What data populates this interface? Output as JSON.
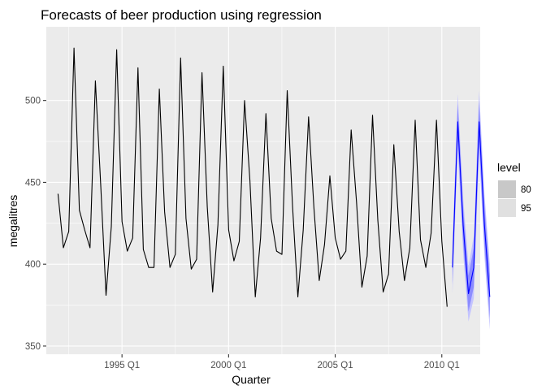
{
  "chart_data": {
    "type": "line",
    "title": "Forecasts of beer production using regression",
    "xlabel": "Quarter",
    "ylabel": "megalitres",
    "xlim": [
      1991.45,
      2011.8
    ],
    "ylim": [
      345,
      545
    ],
    "x_ticks": [
      {
        "value": 1995,
        "label": "1995 Q1"
      },
      {
        "value": 2000,
        "label": "2000 Q1"
      },
      {
        "value": 2005,
        "label": "2005 Q1"
      },
      {
        "value": 2010,
        "label": "2010 Q1"
      }
    ],
    "y_ticks": [
      {
        "value": 350,
        "label": "350"
      },
      {
        "value": 400,
        "label": "400"
      },
      {
        "value": 450,
        "label": "450"
      },
      {
        "value": 500,
        "label": "500"
      }
    ],
    "grid": true,
    "legend": {
      "title": "level",
      "position": "right",
      "entries": [
        {
          "label": "80",
          "color": "#c8c8c8"
        },
        {
          "label": "95",
          "color": "#e0e0e0"
        }
      ]
    },
    "colors": {
      "panel": "#ebebeb",
      "grid_major": "#ffffff",
      "history": "#000000",
      "forecast": "#0000ff",
      "interval_80": "#8c8cff",
      "interval_95": "#c4c4ff"
    },
    "series": [
      {
        "role": "history",
        "start": 1992.0,
        "step": 0.25,
        "values": [
          443,
          410,
          420,
          532,
          433,
          421,
          410,
          512,
          449,
          381,
          423,
          531,
          426,
          408,
          416,
          520,
          409,
          398,
          398,
          507,
          432,
          398,
          406,
          526,
          428,
          397,
          403,
          517,
          435,
          383,
          424,
          521,
          421,
          402,
          414,
          500,
          451,
          380,
          416,
          492,
          428,
          408,
          406,
          506,
          435,
          380,
          421,
          490,
          435,
          390,
          412,
          454,
          416,
          403,
          408,
          482,
          438,
          386,
          405,
          491,
          427,
          383,
          394,
          473,
          420,
          390,
          410,
          488,
          415,
          398,
          419,
          488,
          414,
          374
        ]
      },
      {
        "role": "forecast",
        "start": 2010.5,
        "step": 0.25,
        "values": [
          398,
          487,
          424,
          382,
          398,
          487,
          424,
          380
        ],
        "lo80": [
          388,
          476,
          413,
          371,
          386,
          475,
          412,
          367
        ],
        "hi80": [
          408,
          498,
          435,
          393,
          410,
          499,
          436,
          393
        ],
        "lo95": [
          382,
          470,
          407,
          365,
          379,
          468,
          405,
          360
        ],
        "hi95": [
          414,
          504,
          441,
          399,
          417,
          506,
          443,
          400
        ]
      }
    ]
  }
}
